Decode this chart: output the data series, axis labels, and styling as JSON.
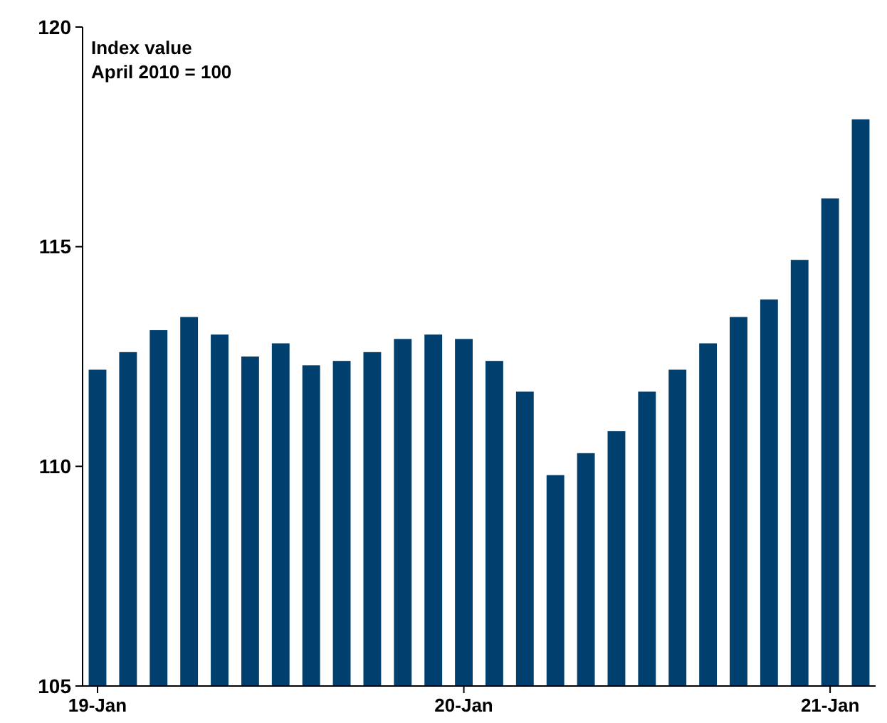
{
  "chart_data": {
    "type": "bar",
    "title": "Index value",
    "subtitle": "April 2010 = 100",
    "categories": [
      "19-Jan",
      null,
      null,
      null,
      null,
      null,
      null,
      null,
      null,
      null,
      null,
      null,
      "20-Jan",
      null,
      null,
      null,
      null,
      null,
      null,
      null,
      null,
      null,
      null,
      null,
      "21-Jan",
      null
    ],
    "values": [
      112.2,
      112.6,
      113.1,
      113.4,
      113.0,
      112.5,
      112.8,
      112.3,
      112.4,
      112.6,
      112.9,
      113.0,
      112.9,
      112.4,
      111.7,
      109.8,
      110.3,
      110.8,
      111.7,
      112.2,
      112.8,
      113.4,
      113.8,
      114.7,
      116.1,
      117.9
    ],
    "color": "#003f6e",
    "ylim": [
      105,
      120
    ],
    "yticks": [
      105,
      110,
      115,
      120
    ],
    "grid": false
  }
}
